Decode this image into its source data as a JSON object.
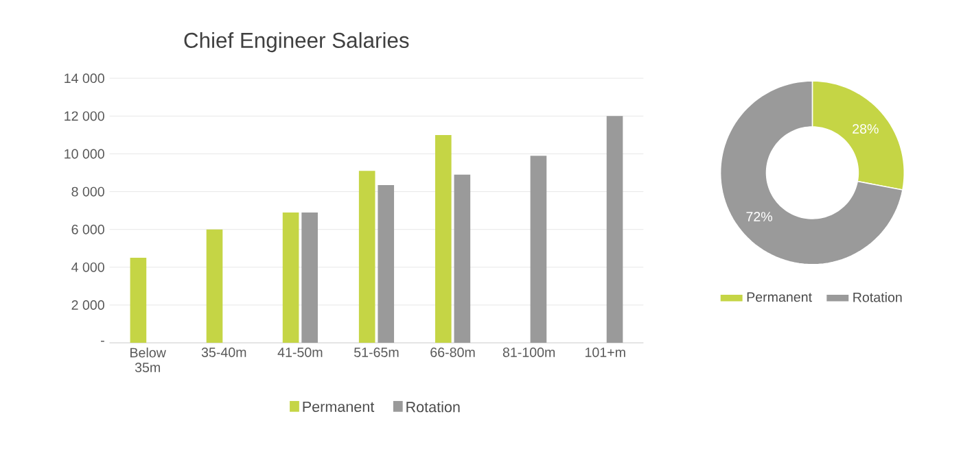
{
  "chart_data": [
    {
      "type": "bar",
      "title": "Chief Engineer Salaries",
      "categories": [
        "Below 35m",
        "35-40m",
        "41-50m",
        "51-65m",
        "66-80m",
        "81-100m",
        "101+m"
      ],
      "series": [
        {
          "name": "Permanent",
          "color": "#c5d545",
          "values": [
            4500,
            6000,
            6900,
            9100,
            11000,
            null,
            null
          ]
        },
        {
          "name": "Rotation",
          "color": "#9a9a9a",
          "values": [
            null,
            null,
            6900,
            8350,
            8900,
            9900,
            12000
          ]
        }
      ],
      "ylim": [
        0,
        14000
      ],
      "yticks": [
        {
          "value": 0,
          "label": "-"
        },
        {
          "value": 2000,
          "label": "2 000"
        },
        {
          "value": 4000,
          "label": "4 000"
        },
        {
          "value": 6000,
          "label": "6 000"
        },
        {
          "value": 8000,
          "label": "8 000"
        },
        {
          "value": 10000,
          "label": "10 000"
        },
        {
          "value": 12000,
          "label": "12 000"
        },
        {
          "value": 14000,
          "label": "14 000"
        }
      ],
      "grid": "y",
      "legend": "bottom"
    },
    {
      "type": "donut",
      "categories": [
        "Permanent",
        "Rotation"
      ],
      "values": [
        28,
        72
      ],
      "colors": [
        "#c5d545",
        "#9a9a9a"
      ],
      "value_labels": [
        "28%",
        "72%"
      ],
      "legend": "bottom"
    }
  ]
}
